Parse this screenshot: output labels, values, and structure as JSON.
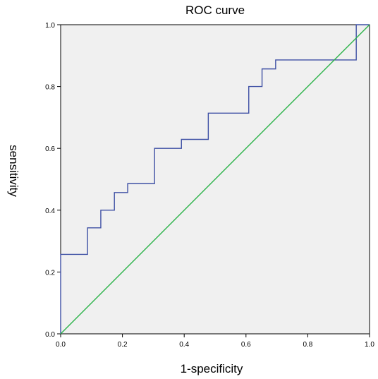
{
  "chart_data": {
    "type": "line",
    "title": "ROC curve",
    "xlabel": "1-specificity",
    "ylabel": "sensitivity",
    "xlim": [
      0.0,
      1.0
    ],
    "ylim": [
      0.0,
      1.0
    ],
    "x_ticks": [
      "0.0",
      "0.2",
      "0.4",
      "0.6",
      "0.8",
      "1.0"
    ],
    "y_ticks": [
      "0.0",
      "0.2",
      "0.4",
      "0.6",
      "0.8",
      "1.0"
    ],
    "grid": false,
    "plot_background": "#f0f0f0",
    "series": [
      {
        "color": "#3f51a5",
        "step": true,
        "points": [
          [
            0.0,
            0.0
          ],
          [
            0.0,
            0.257
          ],
          [
            0.087,
            0.257
          ],
          [
            0.087,
            0.343
          ],
          [
            0.13,
            0.343
          ],
          [
            0.13,
            0.4
          ],
          [
            0.174,
            0.4
          ],
          [
            0.174,
            0.457
          ],
          [
            0.217,
            0.457
          ],
          [
            0.217,
            0.486
          ],
          [
            0.304,
            0.486
          ],
          [
            0.304,
            0.6
          ],
          [
            0.391,
            0.6
          ],
          [
            0.391,
            0.629
          ],
          [
            0.478,
            0.629
          ],
          [
            0.478,
            0.714
          ],
          [
            0.609,
            0.714
          ],
          [
            0.609,
            0.8
          ],
          [
            0.652,
            0.8
          ],
          [
            0.652,
            0.857
          ],
          [
            0.696,
            0.857
          ],
          [
            0.696,
            0.886
          ],
          [
            0.957,
            0.886
          ],
          [
            0.957,
            1.0
          ],
          [
            1.0,
            1.0
          ]
        ]
      },
      {
        "color": "#2db34a",
        "points": [
          [
            0.0,
            0.0
          ],
          [
            1.0,
            1.0
          ]
        ]
      }
    ]
  }
}
